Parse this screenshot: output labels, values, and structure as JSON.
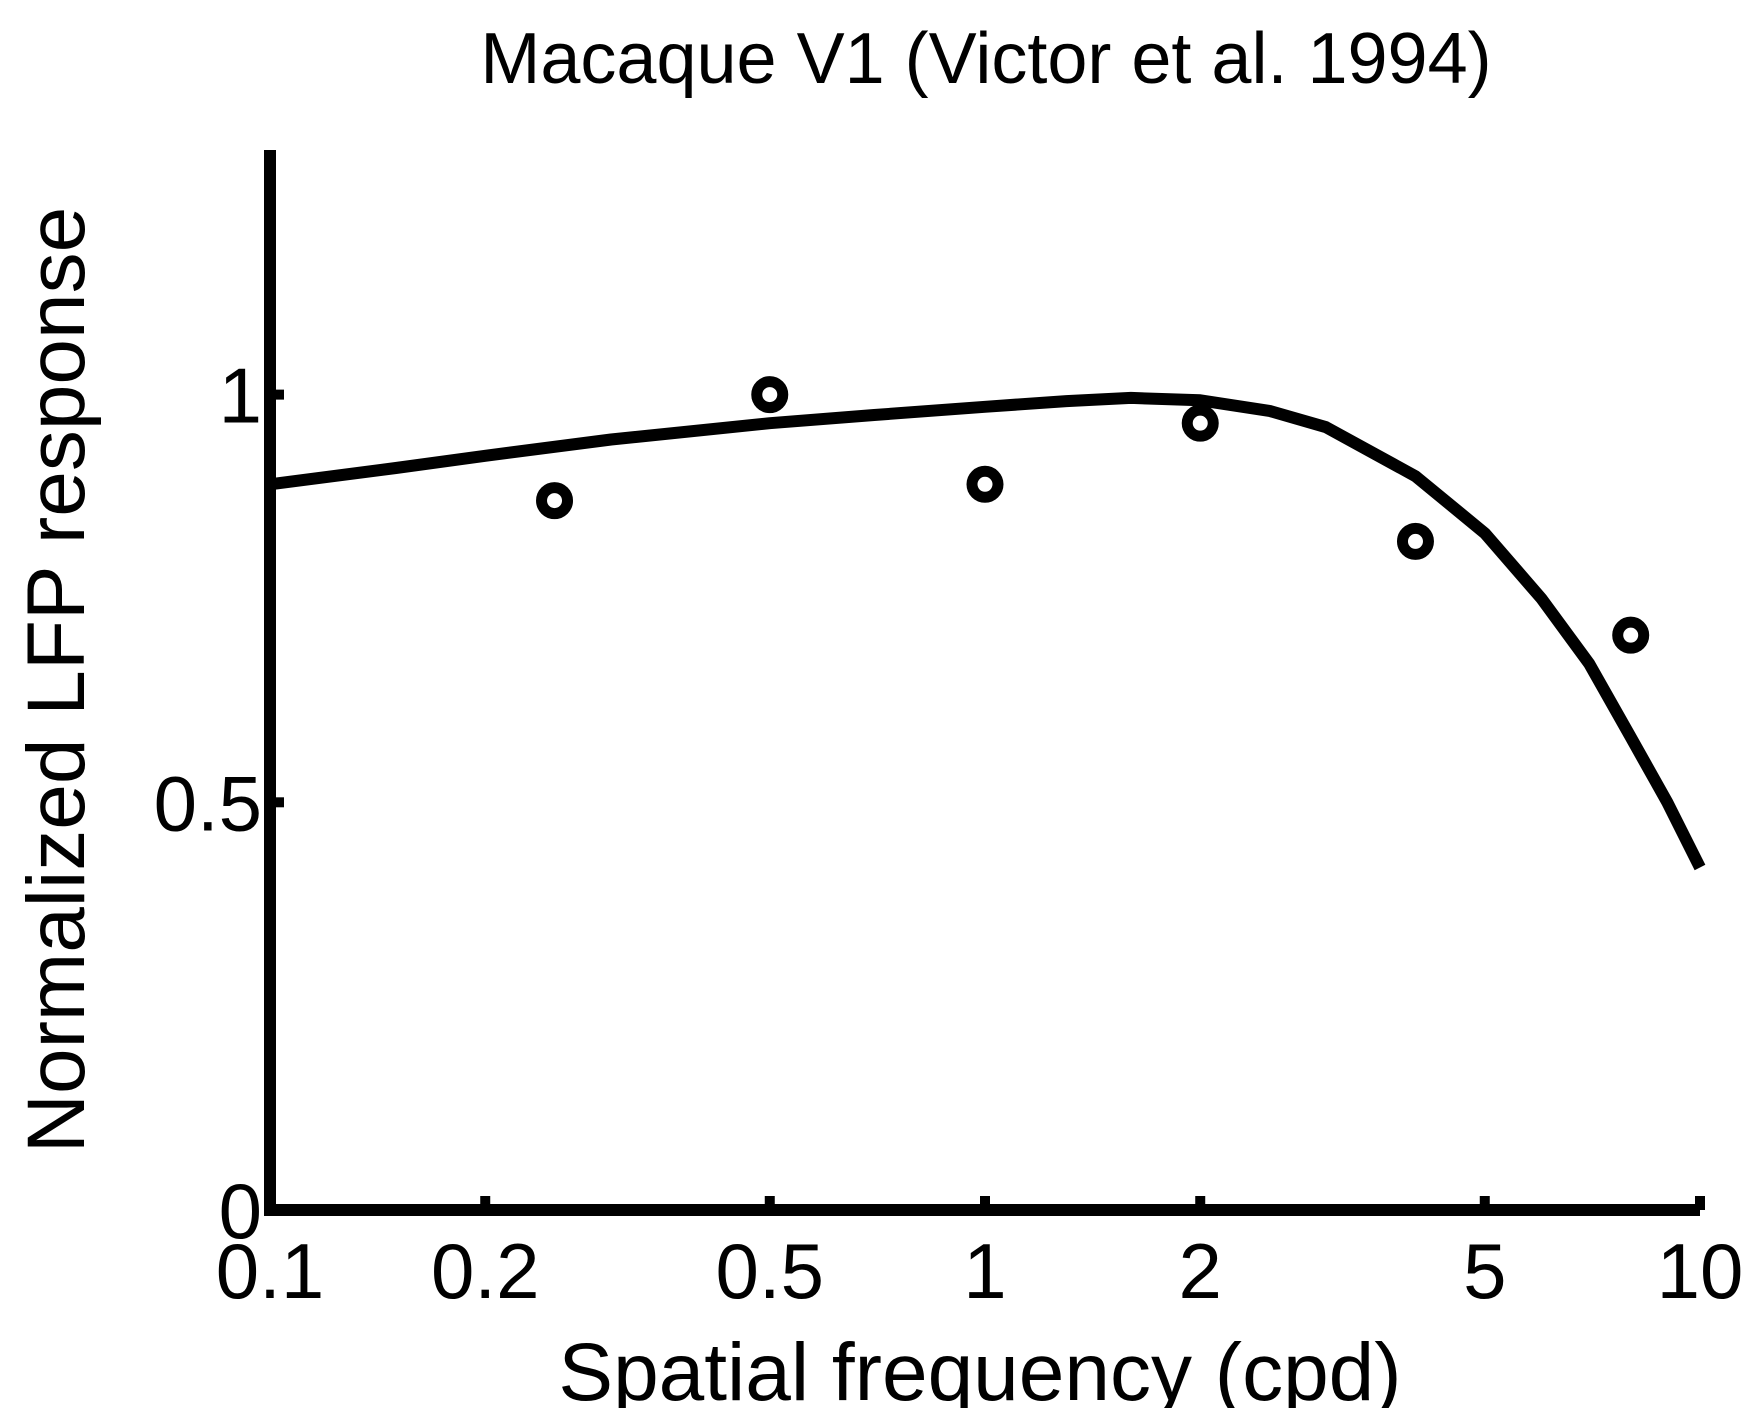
{
  "chart_data": {
    "type": "scatter",
    "title": "Macaque V1 (Victor et al. 1994)",
    "xlabel": "Spatial frequency (cpd)",
    "ylabel": "Normalized LFP response",
    "x_scale": "log",
    "xlim": [
      0.1,
      10
    ],
    "ylim": [
      0,
      1.3
    ],
    "x_ticks": [
      0.1,
      0.2,
      0.5,
      1,
      2,
      5,
      10
    ],
    "x_tick_labels": [
      "0.1",
      "0.2",
      "0.5",
      "1",
      "2",
      "5",
      "10"
    ],
    "y_ticks": [
      0,
      0.5,
      1
    ],
    "y_tick_labels": [
      "0",
      "0.5",
      "1"
    ],
    "grid": false,
    "legend": "none",
    "color": "#000000",
    "series": [
      {
        "kind": "points",
        "x": [
          0.25,
          0.5,
          1.0,
          2.0,
          4.0,
          8.0
        ],
        "y": [
          0.87,
          1.0,
          0.89,
          0.965,
          0.82,
          0.705
        ]
      },
      {
        "kind": "line",
        "x": [
          0.1,
          0.15,
          0.2,
          0.3,
          0.5,
          0.7,
          1.0,
          1.3,
          1.6,
          2.0,
          2.5,
          3.0,
          4.0,
          5.0,
          6.0,
          7.0,
          8.0,
          9.0,
          10.0
        ],
        "y": [
          0.89,
          0.91,
          0.925,
          0.945,
          0.965,
          0.975,
          0.985,
          0.992,
          0.996,
          0.993,
          0.98,
          0.96,
          0.9,
          0.83,
          0.75,
          0.67,
          0.58,
          0.5,
          0.42
        ]
      }
    ]
  }
}
